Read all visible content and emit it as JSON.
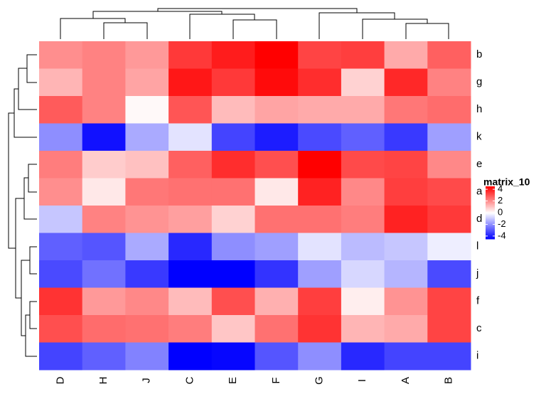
{
  "chart_data": {
    "type": "heatmap",
    "columns": [
      "D",
      "H",
      "J",
      "C",
      "E",
      "F",
      "G",
      "I",
      "A",
      "B"
    ],
    "rows": [
      "b",
      "g",
      "h",
      "k",
      "e",
      "a",
      "d",
      "l",
      "j",
      "f",
      "c",
      "i"
    ],
    "values": [
      [
        2,
        2.2,
        1.8,
        3.5,
        4,
        4.5,
        3.3,
        3.4,
        1.5,
        2.8
      ],
      [
        1.3,
        2.2,
        1.6,
        4.1,
        3.5,
        4.3,
        3.7,
        0.8,
        3.8,
        2.2
      ],
      [
        2.9,
        2.2,
        0.1,
        3,
        1.2,
        1.6,
        1.5,
        1.5,
        2.4,
        2.6
      ],
      [
        -2,
        -4.2,
        -1.5,
        -0.5,
        -3.3,
        -4,
        -3.2,
        -2.8,
        -3.5,
        -1.7
      ],
      [
        2.3,
        0.9,
        1.1,
        2.8,
        3.7,
        3.1,
        4.5,
        3.2,
        3.3,
        2.1
      ],
      [
        2,
        0.4,
        2.4,
        2.5,
        2.5,
        0.4,
        3.9,
        2.1,
        3.4,
        3.2
      ],
      [
        -1,
        2.2,
        1.9,
        1.7,
        0.8,
        2.5,
        2.5,
        2.3,
        3.9,
        3.5
      ],
      [
        -2.8,
        -3,
        -1.5,
        -3.8,
        -2,
        -1.7,
        -0.5,
        -1.2,
        -1,
        -0.3
      ],
      [
        -3.2,
        -2.5,
        -3.5,
        -5,
        -5,
        -3.6,
        -1.7,
        -0.7,
        -1.3,
        -3.2
      ],
      [
        3.6,
        1.8,
        2.1,
        1.2,
        3.1,
        1.4,
        3.4,
        0.3,
        1.9,
        3.3
      ],
      [
        3.1,
        2.6,
        2.5,
        2.3,
        1,
        2.5,
        3.6,
        1.3,
        1.5,
        3.3
      ],
      [
        -3.3,
        -2.8,
        -2.2,
        -4.8,
        -4.4,
        -3,
        -2,
        -3.8,
        -3.3,
        -3.3
      ]
    ],
    "legend_title": "matrix_10",
    "clim": [
      -4.5,
      4.5
    ],
    "colors": [
      "#0000ff",
      "#ffffff",
      "#ff0000"
    ],
    "cticks": [
      4,
      2,
      0,
      -2,
      -4
    ]
  }
}
